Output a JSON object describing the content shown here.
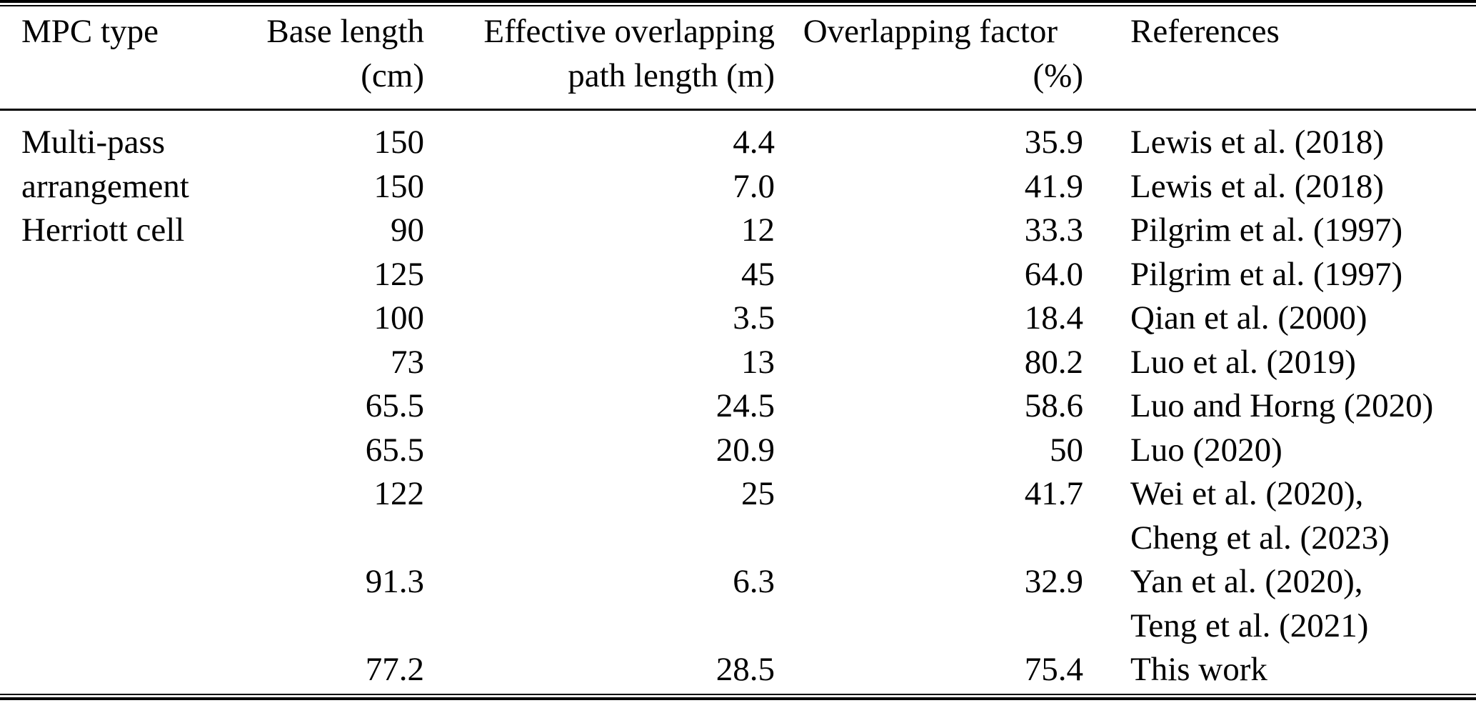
{
  "table": {
    "columns": [
      {
        "label": "MPC type",
        "unit": ""
      },
      {
        "label": "Base length",
        "unit": "(cm)"
      },
      {
        "label": "Effective overlapping",
        "unit": "path length (m)"
      },
      {
        "label": "Overlapping factor",
        "unit": "(%)"
      },
      {
        "label": "References",
        "unit": ""
      }
    ],
    "rows": [
      {
        "mpc_type": "Multi-pass",
        "base_length": "150",
        "path_length": "4.4",
        "overlap_factor": "35.9",
        "references": [
          "Lewis et al. (2018)"
        ]
      },
      {
        "mpc_type": "arrangement",
        "base_length": "150",
        "path_length": "7.0",
        "overlap_factor": "41.9",
        "references": [
          "Lewis et al. (2018)"
        ]
      },
      {
        "mpc_type": "Herriott cell",
        "base_length": "90",
        "path_length": "12",
        "overlap_factor": "33.3",
        "references": [
          "Pilgrim et al. (1997)"
        ]
      },
      {
        "mpc_type": "",
        "base_length": "125",
        "path_length": "45",
        "overlap_factor": "64.0",
        "references": [
          "Pilgrim et al. (1997)"
        ]
      },
      {
        "mpc_type": "",
        "base_length": "100",
        "path_length": "3.5",
        "overlap_factor": "18.4",
        "references": [
          "Qian et al. (2000)"
        ]
      },
      {
        "mpc_type": "",
        "base_length": "73",
        "path_length": "13",
        "overlap_factor": "80.2",
        "references": [
          "Luo et al. (2019)"
        ]
      },
      {
        "mpc_type": "",
        "base_length": "65.5",
        "path_length": "24.5",
        "overlap_factor": "58.6",
        "references": [
          "Luo and Horng (2020)"
        ]
      },
      {
        "mpc_type": "",
        "base_length": "65.5",
        "path_length": "20.9",
        "overlap_factor": "50",
        "references": [
          "Luo (2020)"
        ]
      },
      {
        "mpc_type": "",
        "base_length": "122",
        "path_length": "25",
        "overlap_factor": "41.7",
        "references": [
          "Wei et al. (2020),",
          "Cheng et al. (2023)"
        ]
      },
      {
        "mpc_type": "",
        "base_length": "91.3",
        "path_length": "6.3",
        "overlap_factor": "32.9",
        "references": [
          "Yan et al. (2020),",
          "Teng et al. (2021)"
        ]
      },
      {
        "mpc_type": "",
        "base_length": "77.2",
        "path_length": "28.5",
        "overlap_factor": "75.4",
        "references": [
          "This work"
        ]
      }
    ]
  },
  "colors": {
    "text": "#000000",
    "rule": "#000000",
    "background": "#ffffff"
  }
}
